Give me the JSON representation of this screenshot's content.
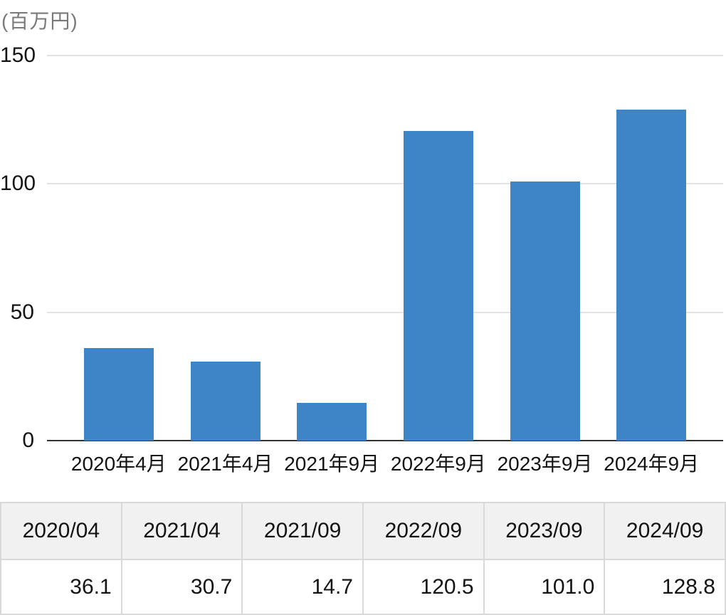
{
  "chart_data": {
    "type": "bar",
    "title": "",
    "unit_label": "(百万円)",
    "categories": [
      "2020年4月",
      "2021年4月",
      "2021年9月",
      "2022年9月",
      "2023年9月",
      "2024年9月"
    ],
    "values": [
      36.1,
      30.7,
      14.7,
      120.5,
      101.0,
      128.8
    ],
    "ylim": [
      0,
      150
    ],
    "yticks": [
      0,
      50,
      100,
      150
    ],
    "ytick_labels_top_to_bottom": [
      "150",
      "100",
      "50",
      "0"
    ],
    "xlabel": "",
    "ylabel": "",
    "grid": "horizontal gridlines on",
    "legend": "none",
    "bar_color": "#3d85c6"
  },
  "table": {
    "headers": [
      "2020/04",
      "2021/04",
      "2021/09",
      "2022/09",
      "2023/09",
      "2024/09"
    ],
    "values": [
      "36.1",
      "30.7",
      "14.7",
      "120.5",
      "101.0",
      "128.8"
    ]
  },
  "colors": {
    "bar": "#3d85c6",
    "gridline": "#e3e3e3",
    "axis_line": "#333333",
    "unit_label_text": "#7a7a7a",
    "table_header_bg": "#f1f1f1",
    "table_border": "#d9d9d9",
    "text": "#141414"
  }
}
